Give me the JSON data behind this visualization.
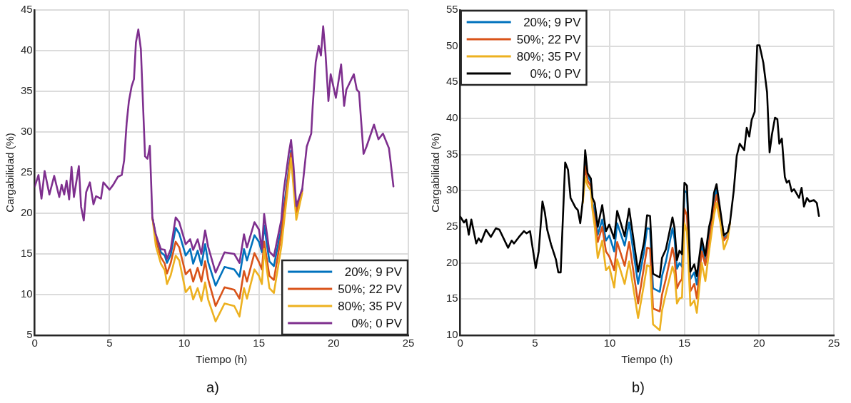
{
  "chart_data": [
    {
      "type": "line",
      "xlabel": "Tiempo (h)",
      "ylabel": "Cargabilidad (%)",
      "annotations": [
        "a)"
      ],
      "xlim": [
        0,
        25
      ],
      "xticks": [
        0,
        5,
        10,
        15,
        20,
        25
      ],
      "ylim": [
        5,
        45
      ],
      "yticks": [
        5,
        10,
        15,
        20,
        25,
        30,
        35,
        40,
        45
      ],
      "grid": true,
      "legend": "bottom right",
      "series": [
        {
          "name": "20%; 9 PV",
          "color": "#0072bd",
          "x": [
            7.87,
            8.1,
            8.44,
            8.7,
            8.85,
            9.1,
            9.43,
            9.67,
            10.1,
            10.4,
            10.6,
            10.9,
            11.15,
            11.4,
            11.6,
            12.1,
            12.7,
            13.35,
            13.7,
            14,
            14.2,
            14.7,
            15,
            15.2,
            15.35,
            15.7,
            16,
            16.5,
            17.15,
            17.5,
            17.9
          ],
          "values": [
            19.5,
            17.2,
            15.2,
            14.8,
            13.9,
            14.9,
            18.2,
            17.5,
            14.8,
            15.6,
            13.8,
            15.4,
            13.6,
            16.2,
            14,
            11.1,
            13.4,
            13.1,
            12.2,
            15.6,
            14.2,
            17.3,
            16.5,
            15.2,
            18.5,
            14.1,
            13.5,
            18.2,
            27.7,
            20.5,
            23
          ]
        },
        {
          "name": "50%; 22 PV",
          "color": "#d95319",
          "x": [
            7.87,
            8.1,
            8.44,
            8.7,
            8.85,
            9.1,
            9.43,
            9.67,
            10.1,
            10.4,
            10.6,
            10.9,
            11.15,
            11.4,
            11.6,
            12.1,
            12.7,
            13.35,
            13.7,
            14,
            14.2,
            14.7,
            15,
            15.2,
            15.35,
            15.7,
            16,
            16.5,
            17.15,
            17.5,
            17.9
          ],
          "values": [
            19.5,
            16.8,
            14.6,
            13.8,
            12.6,
            13.9,
            16.5,
            15.8,
            12.5,
            13.1,
            11.6,
            13.3,
            11.6,
            14.1,
            11.9,
            8.6,
            10.9,
            10.6,
            9.5,
            12.9,
            11.6,
            15.1,
            14,
            13.1,
            16.5,
            12.3,
            11.8,
            17.4,
            27.4,
            20,
            22.8
          ]
        },
        {
          "name": "80%; 35 PV",
          "color": "#edb120",
          "x": [
            7.87,
            8.1,
            8.44,
            8.7,
            8.85,
            9.1,
            9.43,
            9.67,
            10.1,
            10.4,
            10.6,
            10.9,
            11.15,
            11.4,
            11.6,
            12.1,
            12.7,
            13.35,
            13.7,
            14,
            14.2,
            14.7,
            15,
            15.2,
            15.35,
            15.7,
            16,
            16.5,
            17.15,
            17.5,
            17.9
          ],
          "values": [
            19.5,
            16,
            13.8,
            13,
            11.3,
            12.4,
            14.8,
            14.2,
            10.3,
            11,
            9.4,
            10.8,
            9.2,
            11.5,
            9.4,
            6.7,
            8.9,
            8.6,
            7.3,
            10.8,
            9.5,
            13.1,
            12.3,
            11.3,
            15.6,
            10.8,
            10.2,
            15.9,
            26.8,
            19.2,
            22.5
          ]
        },
        {
          "name": "0%; 0 PV",
          "color": "#7e2f8e",
          "x": [
            0,
            0.25,
            0.45,
            0.66,
            0.98,
            1.3,
            1.64,
            1.8,
            1.97,
            2.13,
            2.3,
            2.46,
            2.62,
            2.95,
            3.1,
            3.28,
            3.44,
            3.69,
            3.93,
            4.1,
            4.43,
            4.59,
            5,
            5.25,
            5.57,
            5.82,
            5.98,
            6.15,
            6.3,
            6.48,
            6.64,
            6.77,
            6.93,
            7.1,
            7.38,
            7.54,
            7.7,
            7.87,
            8.1,
            8.44,
            8.7,
            8.85,
            9.1,
            9.43,
            9.67,
            10.1,
            10.4,
            10.6,
            10.9,
            11.15,
            11.4,
            11.6,
            12.1,
            12.7,
            13.35,
            13.7,
            14,
            14.2,
            14.7,
            15,
            15.2,
            15.35,
            15.7,
            16,
            16.5,
            16.65,
            17,
            17.15,
            17.3,
            17.5,
            17.9,
            18.2,
            18.5,
            18.6,
            18.8,
            19,
            19.15,
            19.3,
            19.45,
            19.65,
            19.8,
            20.15,
            20.5,
            20.7,
            20.85,
            21.35,
            21.55,
            21.7,
            22,
            22.2,
            22.7,
            23,
            23.3,
            23.7,
            23.8,
            24
          ],
          "values": [
            23.3,
            24.7,
            21.8,
            25.2,
            22.3,
            24.6,
            22,
            23.5,
            22.3,
            24,
            21.7,
            25.7,
            22,
            25.8,
            20.8,
            19.1,
            22.6,
            23.8,
            21.1,
            22.1,
            21.8,
            23.8,
            22.9,
            23.5,
            24.5,
            24.7,
            26.5,
            31.1,
            33.8,
            35.6,
            36.5,
            41,
            42.6,
            40.2,
            27,
            26.7,
            28.3,
            19.5,
            17.4,
            15.6,
            15.5,
            14.4,
            15.6,
            19.5,
            18.9,
            16.2,
            16.8,
            15.5,
            16.8,
            15,
            17.9,
            15.9,
            12.7,
            15.2,
            15,
            13.9,
            17.4,
            15.8,
            18.9,
            18,
            15.6,
            19.9,
            15.3,
            14.7,
            19.2,
            22.6,
            27.4,
            29,
            26.2,
            20.9,
            23,
            28.2,
            29.8,
            33.2,
            38.6,
            40.6,
            39.4,
            43,
            39.8,
            33.8,
            37.1,
            34.2,
            38.3,
            33.2,
            35.2,
            37.1,
            35.2,
            34.9,
            27.3,
            28.2,
            30.9,
            29.1,
            29.8,
            28,
            26.5,
            23.3
          ]
        }
      ]
    },
    {
      "type": "line",
      "xlabel": "Tiempo (h)",
      "ylabel": "Cargabilidad (%)",
      "annotations": [
        "b)"
      ],
      "xlim": [
        0,
        25
      ],
      "xticks": [
        0,
        5,
        10,
        15,
        20,
        25
      ],
      "ylim": [
        10,
        55
      ],
      "yticks": [
        10,
        15,
        20,
        25,
        30,
        35,
        40,
        45,
        50,
        55
      ],
      "grid": true,
      "legend": "top left",
      "series": [
        {
          "name": "20%; 9 PV",
          "color": "#0072bd",
          "x": [
            8.36,
            8.52,
            8.74,
            8.85,
            9,
            9.2,
            9.5,
            9.75,
            9.97,
            10.3,
            10.5,
            11,
            11.3,
            11.9,
            12.3,
            12.5,
            12.7,
            12.9,
            13.35,
            13.5,
            13.76,
            14.2,
            14.34,
            14.5,
            14.67,
            14.84,
            15,
            15.17,
            15.4,
            15.66,
            15.83,
            16.16,
            16.4,
            16.65,
            16.98,
            17.15,
            17.4,
            17.64,
            17.9,
            18.05
          ],
          "values": [
            34.5,
            32.1,
            31.2,
            28.3,
            27,
            23.9,
            26,
            23.1,
            23.8,
            21.6,
            25.5,
            22.4,
            25.6,
            17.1,
            21.6,
            24.8,
            24.7,
            16.5,
            16,
            18.2,
            20.2,
            24.8,
            23.3,
            19.2,
            20,
            19.5,
            30,
            29.7,
            17.8,
            18.7,
            17,
            22.4,
            20.4,
            23.9,
            28.7,
            30.2,
            26.6,
            23.4,
            23.9,
            25.6
          ]
        },
        {
          "name": "50%; 22 PV",
          "color": "#d95319",
          "x": [
            8.2,
            8.36,
            8.52,
            8.74,
            8.85,
            9,
            9.2,
            9.5,
            9.75,
            9.97,
            10.3,
            10.5,
            11,
            11.3,
            11.9,
            12.3,
            12.5,
            12.7,
            12.9,
            13.35,
            13.5,
            13.76,
            14.2,
            14.34,
            14.5,
            14.67,
            14.84,
            15,
            15.17,
            15.4,
            15.66,
            15.83,
            16.16,
            16.4,
            16.65,
            16.98,
            17.15,
            17.4,
            17.64,
            17.9,
            18.05
          ],
          "values": [
            28.5,
            33.4,
            31.4,
            30.6,
            27.7,
            26,
            22.9,
            25,
            21.6,
            20.9,
            19,
            22.9,
            19.6,
            22.9,
            14.4,
            19.5,
            22.1,
            22,
            13.7,
            13.3,
            15.6,
            17.8,
            22.1,
            20.7,
            16.5,
            17.3,
            17.8,
            27.5,
            26.6,
            16.1,
            17.1,
            15.1,
            21.6,
            19.7,
            22.9,
            27.7,
            29.4,
            26.3,
            23.1,
            23.8,
            25.6
          ]
        },
        {
          "name": "80%; 35 PV",
          "color": "#edb120",
          "x": [
            8.2,
            8.36,
            8.52,
            8.74,
            8.85,
            9,
            9.2,
            9.5,
            9.75,
            9.97,
            10.3,
            10.5,
            11,
            11.3,
            11.9,
            12.3,
            12.5,
            12.7,
            12.9,
            13.35,
            13.5,
            13.76,
            14.2,
            14.34,
            14.5,
            14.67,
            14.84,
            15,
            15.17,
            15.4,
            15.66,
            15.83,
            16.16,
            16.4,
            16.65,
            16.98,
            17.15,
            17.4,
            17.64,
            17.9,
            18.05
          ],
          "values": [
            28.3,
            31.9,
            30.7,
            30,
            27.3,
            25,
            20.7,
            23.1,
            19,
            19.5,
            16.6,
            20.5,
            17.1,
            20.2,
            12.4,
            17.1,
            19.7,
            19.5,
            11.5,
            10.7,
            13.4,
            15.8,
            19.5,
            18.5,
            14.4,
            15.1,
            15.2,
            25.5,
            24.3,
            14.1,
            14.8,
            13.1,
            20,
            17.5,
            21.6,
            26.6,
            28.3,
            25.6,
            21.9,
            23.3,
            25.6
          ]
        },
        {
          "name": "0%; 0 PV",
          "color": "#000000",
          "x": [
            0,
            0.25,
            0.4,
            0.57,
            0.74,
            1.07,
            1.23,
            1.4,
            1.72,
            2.05,
            2.38,
            2.62,
            3.2,
            3.44,
            3.6,
            3.93,
            4.26,
            4.43,
            4.67,
            5.05,
            5.25,
            5.5,
            5.66,
            5.82,
            6.07,
            6.4,
            6.56,
            6.72,
            7.02,
            7.21,
            7.38,
            7.7,
            7.87,
            8.03,
            8.2,
            8.36,
            8.52,
            8.74,
            8.85,
            9,
            9.2,
            9.5,
            9.75,
            9.97,
            10.3,
            10.5,
            11,
            11.3,
            11.9,
            12.3,
            12.5,
            12.7,
            12.9,
            13.35,
            13.5,
            13.76,
            14.2,
            14.34,
            14.5,
            14.67,
            14.84,
            15,
            15.17,
            15.4,
            15.66,
            15.83,
            16.16,
            16.4,
            16.65,
            16.8,
            16.98,
            17.15,
            17.4,
            17.64,
            17.9,
            18.05,
            18.3,
            18.5,
            18.7,
            19,
            19.17,
            19.34,
            19.5,
            19.7,
            19.87,
            20.03,
            20.28,
            20.53,
            20.7,
            20.86,
            21.06,
            21.22,
            21.35,
            21.52,
            21.72,
            21.85,
            22,
            22.18,
            22.34,
            22.67,
            22.84,
            23,
            23.2,
            23.37,
            23.66,
            23.86,
            24
          ],
          "values": [
            26.4,
            25.6,
            26,
            23.9,
            26,
            22.7,
            23.4,
            22.9,
            24.6,
            23.6,
            24.8,
            24.6,
            22.1,
            23.1,
            22.7,
            23.6,
            24.4,
            24.1,
            24.4,
            19.3,
            21.6,
            28.5,
            27,
            24.6,
            22.6,
            20.5,
            18.7,
            18.7,
            33.9,
            32.9,
            29,
            27.7,
            27.3,
            25.5,
            28.7,
            35.6,
            32.4,
            31.7,
            29,
            28.3,
            25,
            28,
            24.4,
            25.3,
            23.4,
            27.2,
            23.7,
            27.5,
            18.8,
            22.9,
            26.6,
            26.5,
            18.5,
            18,
            20.7,
            21.9,
            26.3,
            24.8,
            20.4,
            21.7,
            21.2,
            31.1,
            30.7,
            18.8,
            19.8,
            18.2,
            23.4,
            21,
            25,
            26.3,
            29.7,
            30.9,
            27.3,
            23.8,
            24.3,
            25.6,
            30,
            34.8,
            36.5,
            35.6,
            38.7,
            37.5,
            39.8,
            40.9,
            50.1,
            50.1,
            47.7,
            43.6,
            35.3,
            37.8,
            40.1,
            39.9,
            36.5,
            37.2,
            31.9,
            31.1,
            31.4,
            29.9,
            30.2,
            29,
            30.4,
            27.8,
            29,
            28.5,
            28.7,
            28.3,
            26.5
          ]
        }
      ]
    }
  ]
}
